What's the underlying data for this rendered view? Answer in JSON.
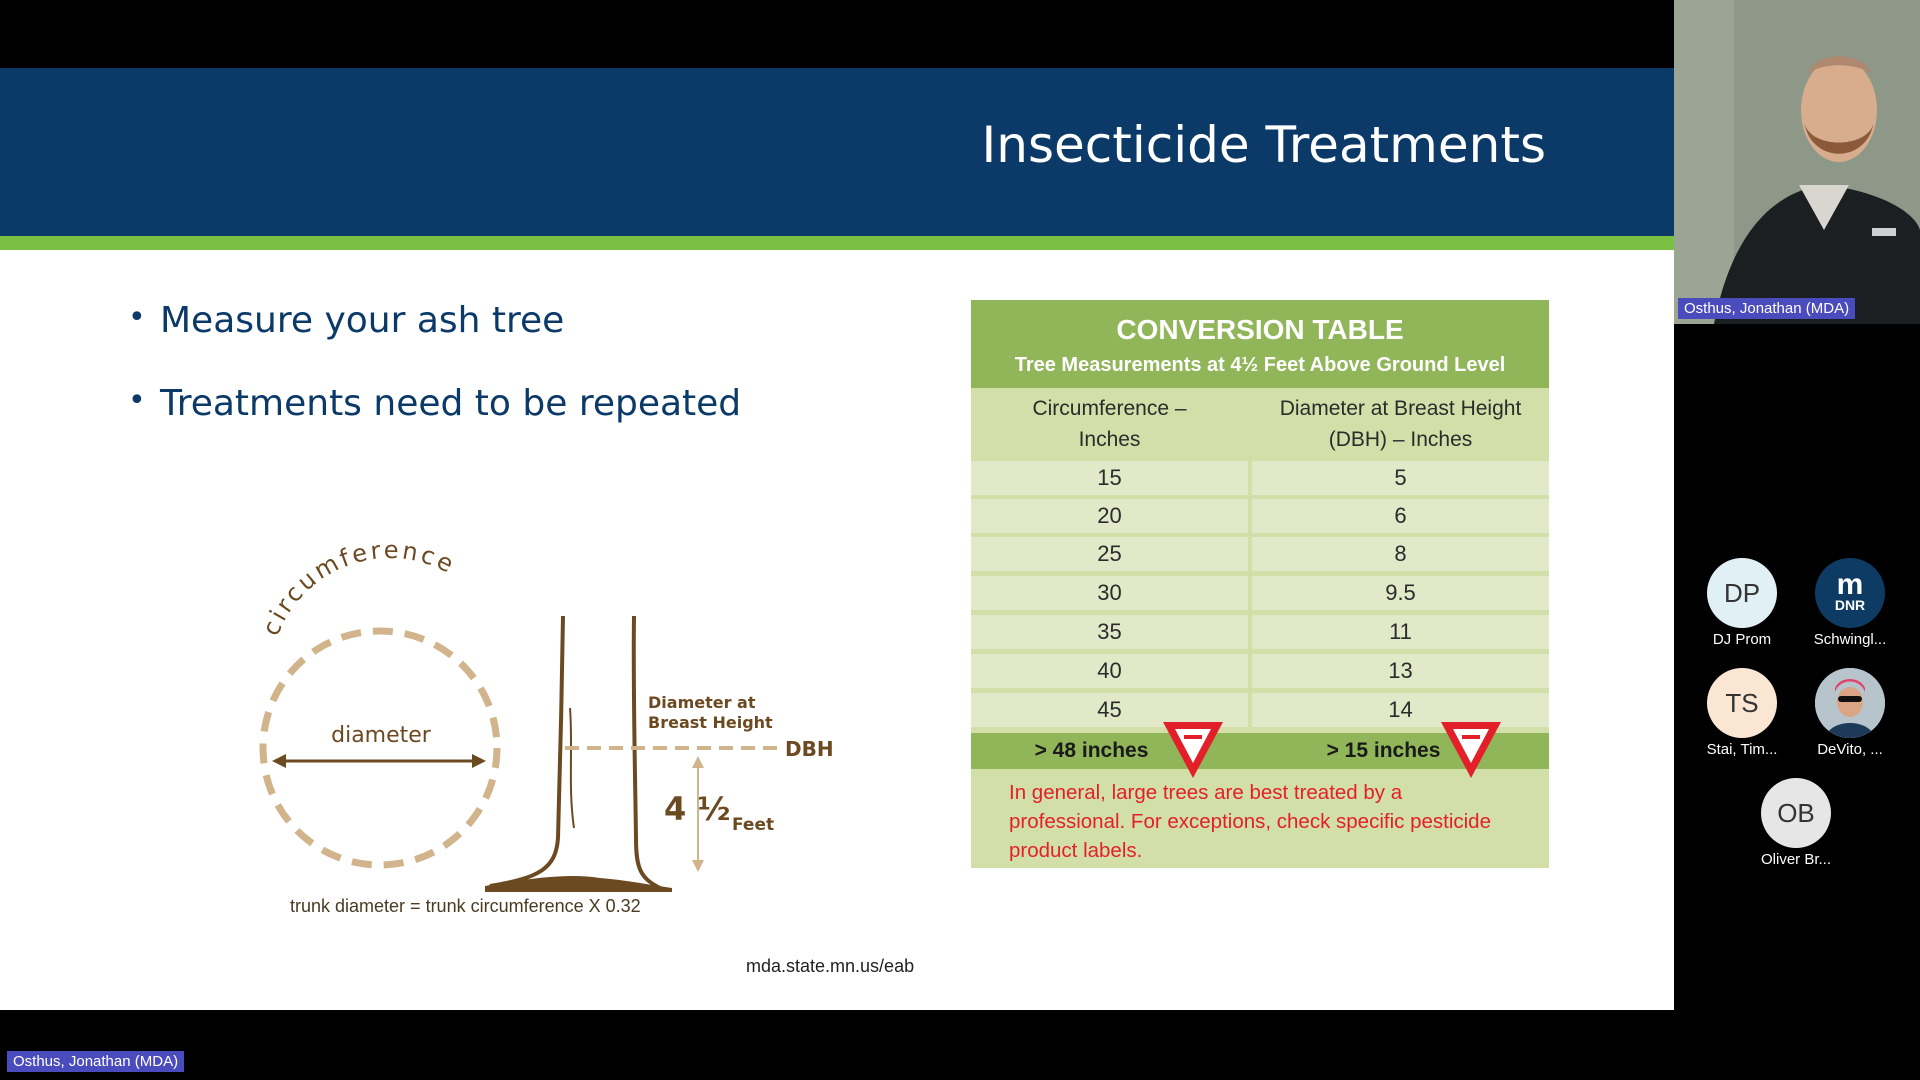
{
  "slide": {
    "title": "Insecticide Treatments",
    "bullets": [
      "Measure your ash tree",
      "Treatments need to be repeated"
    ],
    "diagram": {
      "circumference_label": "circumference",
      "diameter_label": "diameter",
      "dbh_heading_line1": "Diameter at",
      "dbh_heading_line2": "Breast Height",
      "dbh_abbrev": "DBH",
      "height_value": "4 ½",
      "height_unit": "Feet",
      "formula": "trunk diameter = trunk circumference X 0.32"
    },
    "conversion_table": {
      "title": "CONVERSION TABLE",
      "subtitle": "Tree Measurements at 4½ Feet Above Ground Level",
      "col1_header": "Circumference – Inches",
      "col2_header": "Diameter at Breast Height (DBH) – Inches",
      "rows": [
        {
          "circumference": "15",
          "dbh": "5"
        },
        {
          "circumference": "20",
          "dbh": "6"
        },
        {
          "circumference": "25",
          "dbh": "8"
        },
        {
          "circumference": "30",
          "dbh": "9.5"
        },
        {
          "circumference": "35",
          "dbh": "11"
        },
        {
          "circumference": "40",
          "dbh": "13"
        },
        {
          "circumference": "45",
          "dbh": "14"
        }
      ],
      "summary_col1": "> 48 inches",
      "summary_col2": "> 15 inches",
      "note": "In general, large trees are best treated by a professional. For exceptions, check specific pesticide product labels.",
      "warning_sign_color": "#e3202a"
    },
    "url": "mda.state.mn.us/eab",
    "colors": {
      "header": "#0b3a68",
      "accent_green": "#7bc043",
      "table_green": "#91b559"
    }
  },
  "meeting": {
    "main_speaker_label": "Osthus, Jonathan (MDA)",
    "speaker_tile_name": "Osthus, Jonathan (MDA)",
    "participants": [
      {
        "initials": "DP",
        "name": "DJ Prom",
        "color": "#e1f0f5"
      },
      {
        "initials": "",
        "name": "Schwingl...",
        "color": "#0d3b63",
        "logo_text": "DNR"
      },
      {
        "initials": "TS",
        "name": "Stai, Tim...",
        "color": "#fbe6d4"
      },
      {
        "initials": "",
        "name": "DeVito, ...",
        "color": "#b8c4cc"
      },
      {
        "initials": "OB",
        "name": "Oliver Br...",
        "color": "#e6e6e6"
      }
    ]
  }
}
